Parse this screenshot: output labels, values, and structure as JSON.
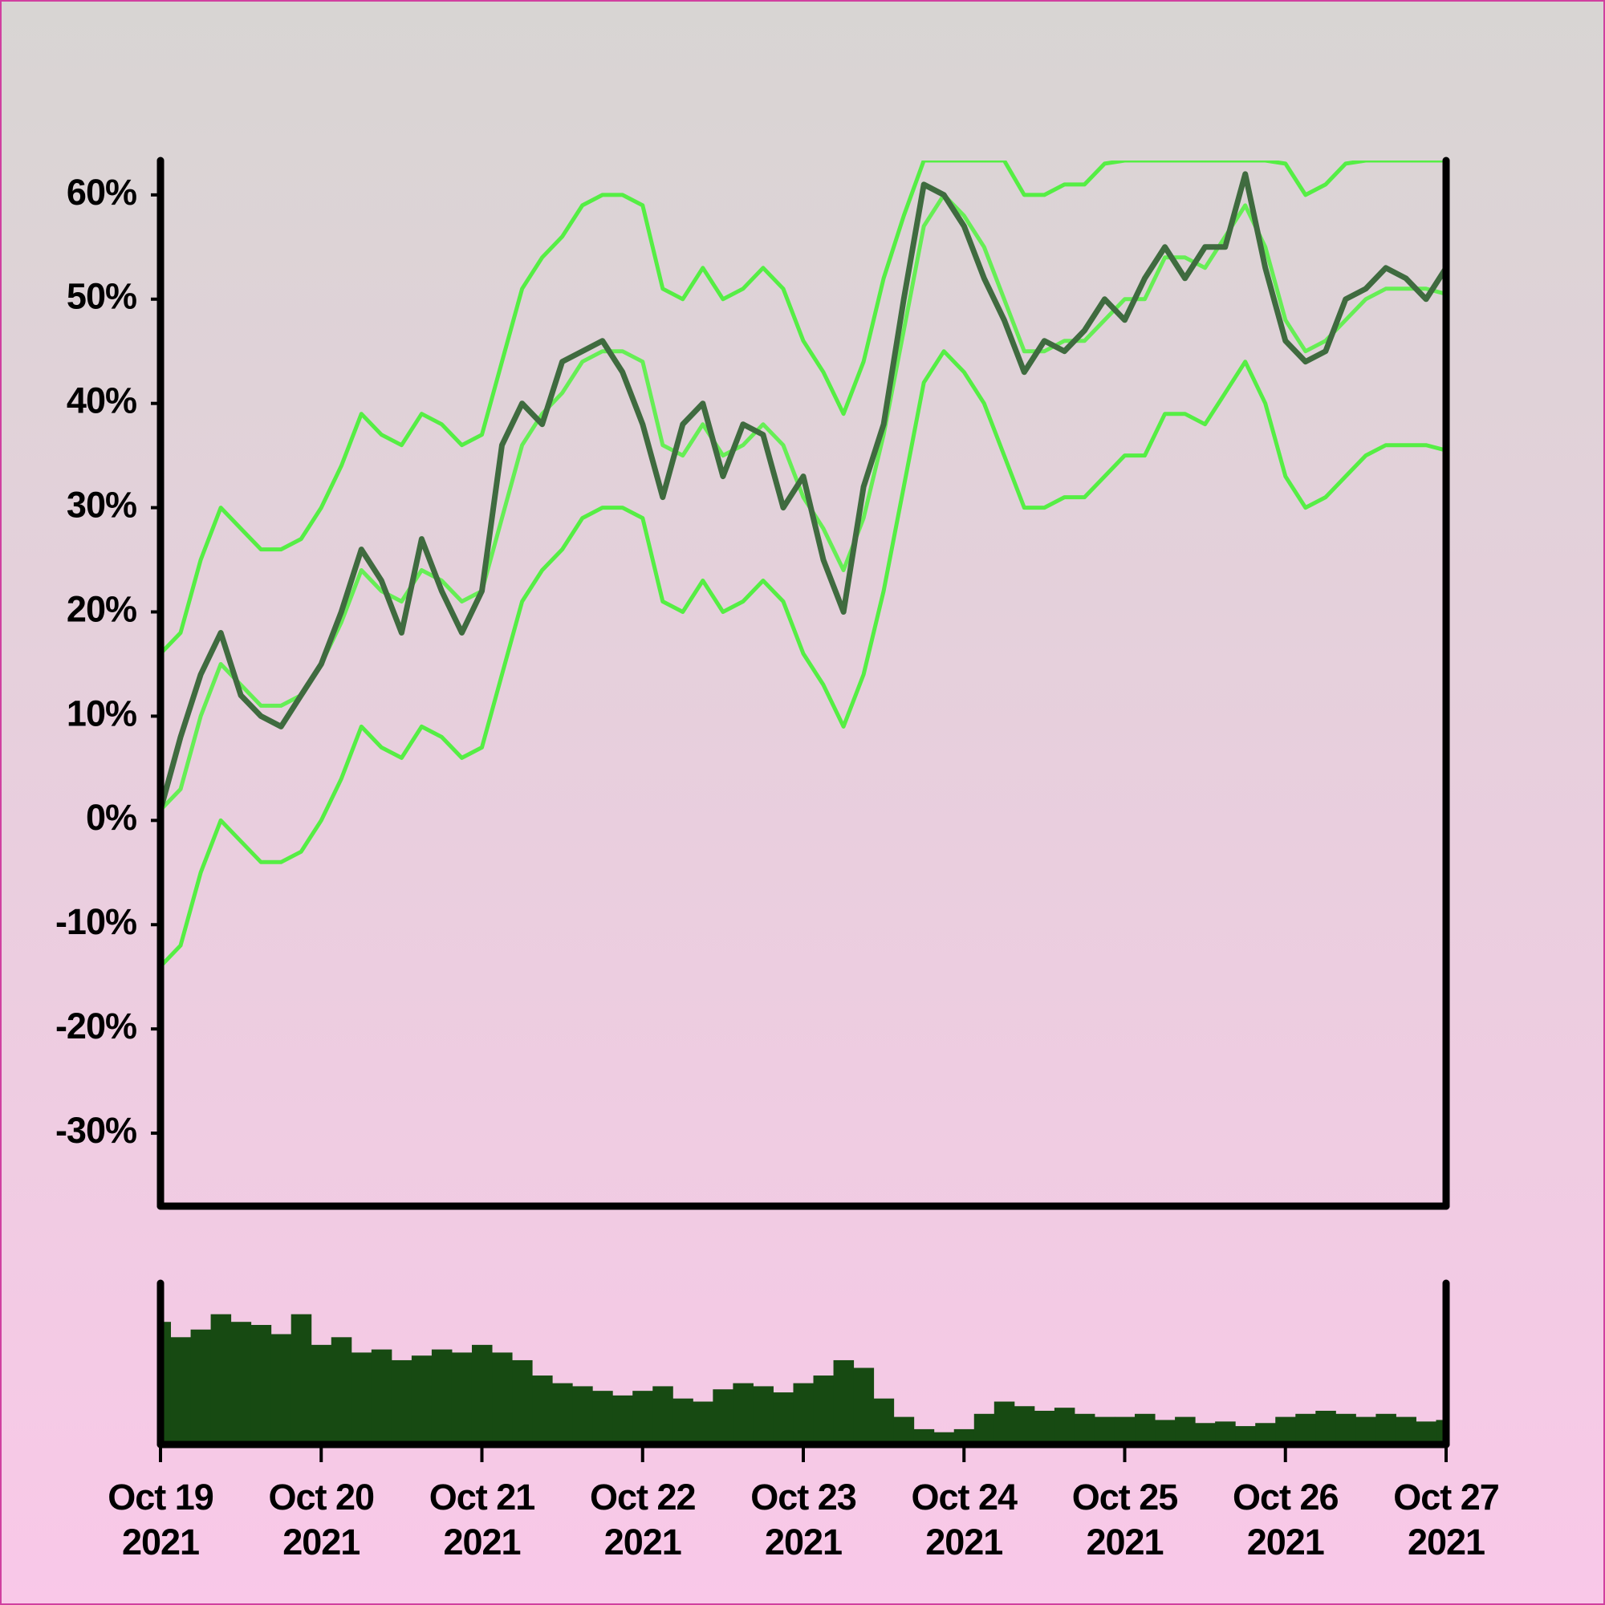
{
  "chart_data": {
    "type": "line",
    "x": [
      0,
      0.125,
      0.25,
      0.375,
      0.5,
      0.625,
      0.75,
      0.875,
      1,
      1.125,
      1.25,
      1.375,
      1.5,
      1.625,
      1.75,
      1.875,
      2,
      2.125,
      2.25,
      2.375,
      2.5,
      2.625,
      2.75,
      2.875,
      3,
      3.125,
      3.25,
      3.375,
      3.5,
      3.625,
      3.75,
      3.875,
      4,
      4.125,
      4.25,
      4.375,
      4.5,
      4.625,
      4.75,
      4.875,
      5,
      5.125,
      5.25,
      5.375,
      5.5,
      5.625,
      5.75,
      5.875,
      6,
      6.125,
      6.25,
      6.375,
      6.5,
      6.625,
      6.75,
      6.875,
      7,
      7.125,
      7.25,
      7.375,
      7.5,
      7.625,
      7.75,
      7.875,
      8
    ],
    "series": [
      {
        "color": "#55ee44",
        "values": [
          16,
          18,
          25,
          30,
          28,
          26,
          26,
          27,
          30,
          34,
          39,
          37,
          36,
          39,
          38,
          36,
          37,
          44,
          51,
          54,
          56,
          59,
          60,
          60,
          59,
          51,
          50,
          53,
          50,
          51,
          53,
          51,
          46,
          43,
          39,
          44,
          52,
          58,
          63.3,
          63.3,
          63.3,
          63.3,
          63.3,
          60,
          60,
          61,
          61,
          63,
          63.3,
          63.3,
          63.3,
          63.3,
          63.3,
          63.3,
          63.3,
          63.3,
          63,
          60,
          61,
          63,
          63.3,
          63.3,
          63.3,
          63.3,
          63.3
        ]
      },
      {
        "color": "#55ee44",
        "values": [
          -14,
          -12,
          -5,
          0,
          -2,
          -4,
          -4,
          -3,
          0,
          4,
          9,
          7,
          6,
          9,
          8,
          6,
          7,
          14,
          21,
          24,
          26,
          29,
          30,
          30,
          29,
          21,
          20,
          23,
          20,
          21,
          23,
          21,
          16,
          13,
          9,
          14,
          22,
          32,
          42,
          45,
          43,
          40,
          35,
          30,
          30,
          31,
          31,
          33,
          35,
          35,
          39,
          39,
          38,
          41,
          44,
          40,
          33,
          30,
          31,
          33,
          35,
          36,
          36,
          36,
          35.5
        ]
      },
      {
        "color": "#66ee55",
        "values": [
          1,
          3,
          10,
          15,
          13,
          11,
          11,
          12,
          15,
          19,
          24,
          22,
          21,
          24,
          23,
          21,
          22,
          29,
          36,
          39,
          41,
          44,
          45,
          45,
          44,
          36,
          35,
          38,
          35,
          36,
          38,
          36,
          31,
          28,
          24,
          29,
          37,
          47,
          57,
          60,
          58,
          55,
          50,
          45,
          45,
          46,
          46,
          48,
          50,
          50,
          54,
          54,
          53,
          56,
          59,
          55,
          48,
          45,
          46,
          48,
          50,
          51,
          51,
          51,
          50.5
        ]
      },
      {
        "color": "#3f6b3f",
        "values": [
          1,
          8,
          14,
          18,
          12,
          10,
          9,
          12,
          15,
          20,
          26,
          23,
          18,
          27,
          22,
          18,
          22,
          36,
          40,
          38,
          44,
          45,
          46,
          43,
          38,
          31,
          38,
          40,
          33,
          38,
          37,
          30,
          33,
          25,
          20,
          32,
          38,
          50,
          61,
          60,
          57,
          52,
          48,
          43,
          46,
          45,
          47,
          50,
          48,
          52,
          55,
          52,
          55,
          55,
          62,
          53,
          46,
          44,
          45,
          50,
          51,
          53,
          52,
          50,
          53
        ]
      }
    ],
    "volume": {
      "color": "#174a12",
      "ylim": [
        0,
        100
      ],
      "values": [
        80,
        70,
        75,
        85,
        80,
        78,
        72,
        85,
        65,
        70,
        60,
        62,
        55,
        58,
        62,
        60,
        65,
        60,
        55,
        45,
        40,
        38,
        35,
        32,
        35,
        38,
        30,
        28,
        36,
        40,
        38,
        34,
        40,
        45,
        55,
        50,
        30,
        18,
        10,
        8,
        10,
        20,
        28,
        25,
        22,
        24,
        20,
        18,
        18,
        20,
        16,
        18,
        14,
        15,
        12,
        14,
        18,
        20,
        22,
        20,
        18,
        20,
        18,
        15,
        16
      ]
    },
    "xlim": [
      0,
      8
    ],
    "xticks": [
      {
        "value": 0,
        "label": "Oct 19\n2021"
      },
      {
        "value": 1,
        "label": "Oct 20\n2021"
      },
      {
        "value": 2,
        "label": "Oct 21\n2021"
      },
      {
        "value": 3,
        "label": "Oct 22\n2021"
      },
      {
        "value": 4,
        "label": "Oct 23\n2021"
      },
      {
        "value": 5,
        "label": "Oct 24\n2021"
      },
      {
        "value": 6,
        "label": "Oct 25\n2021"
      },
      {
        "value": 7,
        "label": "Oct 26\n2021"
      },
      {
        "value": 8,
        "label": "Oct 27\n2021"
      }
    ],
    "ylim": [
      -37,
      63.3
    ],
    "yticks": [
      {
        "value": -30,
        "label": "-30%"
      },
      {
        "value": -20,
        "label": "-20%"
      },
      {
        "value": -10,
        "label": "-10%"
      },
      {
        "value": 0,
        "label": "0%"
      },
      {
        "value": 10,
        "label": "10%"
      },
      {
        "value": 20,
        "label": "20%"
      },
      {
        "value": 30,
        "label": "30%"
      },
      {
        "value": 40,
        "label": "40%"
      },
      {
        "value": 50,
        "label": "50%"
      },
      {
        "value": 60,
        "label": "60%"
      }
    ]
  }
}
